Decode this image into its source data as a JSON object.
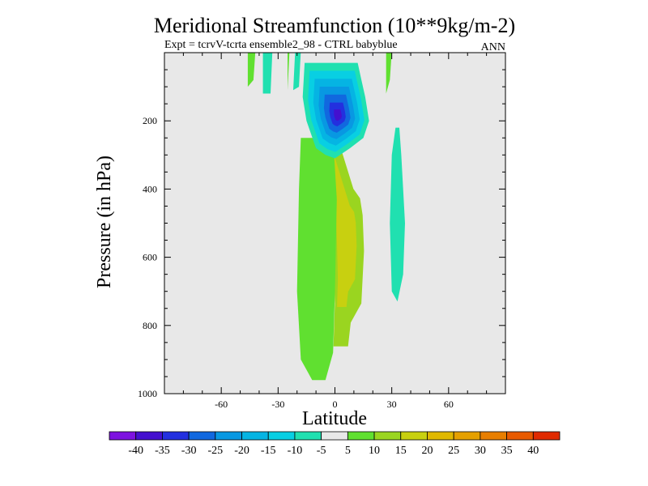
{
  "chart_data": {
    "type": "heatmap",
    "title": "Meridional Streamfunction (10**9kg/m-2)",
    "subtitle": "Expt = tcrvV-tcrta ensemble2_98 - CTRL babyblue",
    "season": "ANN",
    "xlabel": "Latitude",
    "ylabel": "Pressure (in hPa)",
    "xlim": [
      -90,
      90
    ],
    "ylim": [
      1000,
      0
    ],
    "x_ticks": [
      {
        "value": -60,
        "label": "-60"
      },
      {
        "value": -30,
        "label": "-30"
      },
      {
        "value": 0,
        "label": "0"
      },
      {
        "value": 30,
        "label": "30"
      },
      {
        "value": 60,
        "label": "60"
      }
    ],
    "y_ticks": [
      {
        "value": 200,
        "label": "200"
      },
      {
        "value": 400,
        "label": "400"
      },
      {
        "value": 600,
        "label": "600"
      },
      {
        "value": 800,
        "label": "800"
      },
      {
        "value": 1000,
        "label": "1000"
      }
    ],
    "background_color": "#e8e8e8",
    "colorbar": {
      "colors": [
        "#7d12e0",
        "#4410cf",
        "#2330df",
        "#1168df",
        "#0898e2",
        "#05b4e3",
        "#08cfe3",
        "#20e0b0",
        "#e8e8e8",
        "#60e030",
        "#9ad520",
        "#c8d010",
        "#e0b800",
        "#e5a000",
        "#e87e00",
        "#e85a00",
        "#e02a00"
      ],
      "labels": [
        "-40",
        "-35",
        "-30",
        "-25",
        "-20",
        "-15",
        "-10",
        "-5",
        "5",
        "10",
        "15",
        "20",
        "25",
        "30",
        "35",
        "40"
      ]
    },
    "contour_regions": [
      {
        "name": "north-upper-mid-cell",
        "points": [
          [
            -7,
            0
          ],
          [
            -7,
            120
          ],
          [
            -6,
            280
          ],
          [
            -5,
            340
          ],
          [
            -4,
            420
          ],
          [
            -3,
            600
          ],
          [
            -2,
            820
          ],
          [
            -3,
            1000
          ],
          [
            8,
            1000
          ],
          [
            10,
            900
          ],
          [
            18,
            820
          ],
          [
            20,
            600
          ],
          [
            19,
            450
          ],
          [
            17,
            380
          ],
          [
            12,
            340
          ]
        ],
        "levels": [
          [
            0.3,
            "#9ad520"
          ],
          [
            0.55,
            "#c8d010"
          ]
        ]
      },
      {
        "name": "south-main-cell",
        "points": [
          [
            -12,
            300
          ],
          [
            -13,
            400
          ],
          [
            -13,
            600
          ],
          [
            -12,
            800
          ],
          [
            -10,
            870
          ],
          [
            -6,
            900
          ],
          [
            -4,
            870
          ],
          [
            -3,
            780
          ],
          [
            -2,
            620
          ],
          [
            -3,
            440
          ],
          [
            -4,
            330
          ],
          [
            -7,
            280
          ]
        ],
        "levels": [
          [
            0.1,
            "#60e030"
          ],
          [
            0.23,
            "#9ad520"
          ],
          [
            0.35,
            "#c8d010"
          ],
          [
            0.47,
            "#e0b800"
          ],
          [
            0.58,
            "#e5a000"
          ],
          [
            0.68,
            "#e87e00"
          ],
          [
            0.78,
            "#e85a00"
          ],
          [
            0.87,
            "#e02a00"
          ]
        ]
      },
      {
        "name": "tropics-overlay",
        "points": [
          [
            -18,
            250
          ],
          [
            -19,
            400
          ],
          [
            -20,
            700
          ],
          [
            -18,
            900
          ],
          [
            -12,
            960
          ],
          [
            -5,
            960
          ],
          [
            -1,
            880
          ],
          [
            0,
            700
          ],
          [
            1,
            430
          ],
          [
            -1,
            250
          ]
        ],
        "levels": [
          [
            0.0,
            "#60e030"
          ]
        ]
      },
      {
        "name": "upper-negative-cell",
        "points": [
          [
            -16,
            30
          ],
          [
            -17,
            130
          ],
          [
            -15,
            200
          ],
          [
            -10,
            280
          ],
          [
            -5,
            300
          ],
          [
            0,
            310
          ],
          [
            8,
            280
          ],
          [
            15,
            250
          ],
          [
            18,
            200
          ],
          [
            16,
            130
          ],
          [
            14,
            80
          ],
          [
            12,
            30
          ]
        ],
        "levels": [
          [
            0.0,
            "#20e0b0"
          ],
          [
            0.15,
            "#08cfe3"
          ],
          [
            0.3,
            "#05b4e3"
          ],
          [
            0.45,
            "#0898e2"
          ],
          [
            0.6,
            "#1168df"
          ],
          [
            0.75,
            "#2330df"
          ],
          [
            0.88,
            "#4410cf"
          ]
        ]
      },
      {
        "name": "north-subtropic-cell",
        "points": [
          [
            32,
            220
          ],
          [
            30,
            300
          ],
          [
            29,
            500
          ],
          [
            30,
            700
          ],
          [
            33,
            730
          ],
          [
            36,
            650
          ],
          [
            37,
            500
          ],
          [
            35,
            300
          ],
          [
            34,
            220
          ]
        ],
        "levels": [
          [
            0.0,
            "#20e0b0"
          ]
        ]
      }
    ],
    "small_regions": [
      {
        "name": "upper-band-1",
        "points": [
          [
            -46,
            -5
          ],
          [
            -46,
            100
          ],
          [
            -43,
            80
          ],
          [
            -42,
            -5
          ]
        ],
        "color": "#60e030"
      },
      {
        "name": "upper-band-2",
        "points": [
          [
            -38,
            -5
          ],
          [
            -38,
            120
          ],
          [
            -34,
            120
          ],
          [
            -33,
            -5
          ]
        ],
        "color": "#20e0b0"
      },
      {
        "name": "upper-band-3",
        "points": [
          [
            -25,
            -5
          ],
          [
            -25,
            110
          ],
          [
            -24,
            -5
          ]
        ],
        "color": "#60e030"
      },
      {
        "name": "upper-band-4",
        "points": [
          [
            -21,
            -5
          ],
          [
            -22,
            110
          ],
          [
            -19,
            100
          ],
          [
            -18,
            -5
          ]
        ],
        "color": "#20e0b0"
      },
      {
        "name": "upper-band-5",
        "points": [
          [
            27,
            -5
          ],
          [
            27,
            120
          ],
          [
            29,
            80
          ],
          [
            30,
            -5
          ]
        ],
        "color": "#60e030"
      }
    ]
  }
}
